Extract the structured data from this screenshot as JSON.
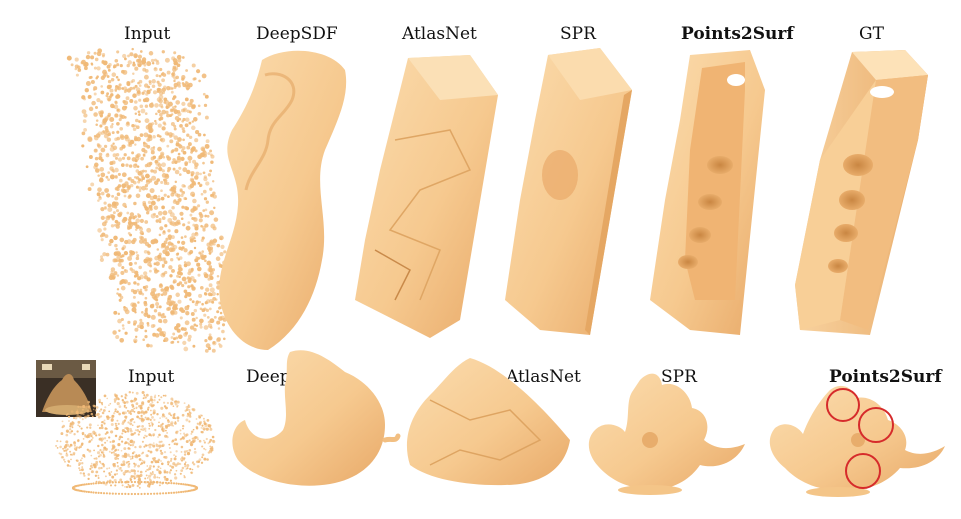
{
  "top_row": {
    "labels": [
      "Input",
      "DeepSDF",
      "AtlasNet",
      "SPR",
      "Points2Surf",
      "GT"
    ]
  },
  "bottom_row": {
    "labels": [
      "Input",
      "DeepSDF",
      "AtlasNet",
      "SPR",
      "Points2Surf"
    ]
  },
  "colors": {
    "surface": "#f6c98f",
    "surface_shadow": "#d99c58",
    "point": "#f0b977",
    "highlight_circle": "#d62b2b"
  }
}
